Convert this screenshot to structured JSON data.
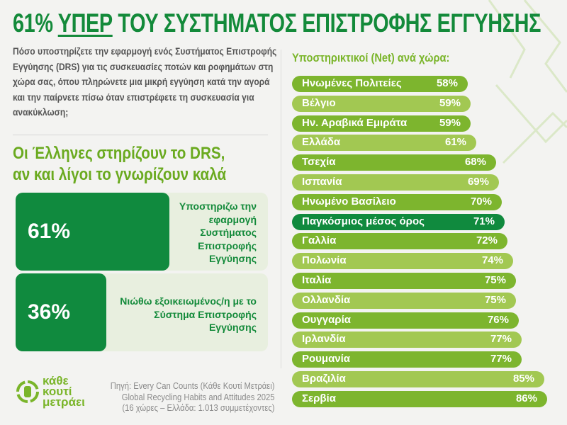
{
  "header": {
    "title_prefix": "61% ",
    "title_emph": "ΥΠΕΡ",
    "title_rest": " ΤΟΥ ΣΥΣΤΗΜΑΤΟΣ ΕΠΙΣΤΡΟΦΗΣ ΕΓΓΥΗΣΗΣ"
  },
  "question": "Πόσο υποστηρίζετε την εφαρμογή ενός Συστήματος Επιστροφής Εγγύησης (DRS) για τις συσκευασίες ποτών και ροφημάτων στη χώρα σας, όπου πληρώνετε μια μικρή εγγύηση κατά την αγορά και την παίρνετε πίσω όταν επιστρέφετε τη συσκευασία για ανακύκλωση;",
  "subhead": {
    "line1": "Οι Έλληνες στηρίζουν το DRS,",
    "line2": "αν και λίγοι το γνωρίζουν καλά"
  },
  "stats": [
    {
      "value": "61%",
      "fraction": 0.61,
      "label": "Υποστηριζω την εφαρμογή Συστήματος Επιστροφής Εγγύησης"
    },
    {
      "value": "36%",
      "fraction": 0.36,
      "label": "Νιώθω εξοικειωμένος/η με το Σύστημα Επιστροφής Εγγύησης"
    }
  ],
  "colors": {
    "dark_green": "#108a3e",
    "bar_a": "#7db52e",
    "bar_b": "#a2c852",
    "title": "#138a3a"
  },
  "chart_data": {
    "type": "bar",
    "orientation": "horizontal",
    "title": "Υποστηρικτικοί (Net) ανά χώρα:",
    "categories": [
      "Ηνωμένες Πολιτείες",
      "Βέλγιο",
      "Ην. Αραβικά Εμιράτα",
      "Ελλάδα",
      "Τσεχία",
      "Ισπανία",
      "Ηνωμένο Βασίλειο",
      "Παγκόσμιος μέσος όρος",
      "Γαλλία",
      "Πολωνία",
      "Ιταλία",
      "Ολλανδία",
      "Ουγγαρία",
      "Ιρλανδία",
      "Ρουμανία",
      "Βραζιλία",
      "Σερβία"
    ],
    "values": [
      58,
      59,
      59,
      61,
      68,
      69,
      70,
      71,
      72,
      74,
      75,
      75,
      76,
      77,
      77,
      85,
      86
    ],
    "highlight": "Παγκόσμιος μέσος όρος",
    "unit": "%"
  },
  "logo": {
    "line1": "κάθε",
    "line2": "κουτί",
    "line3": "μετράει"
  },
  "source": {
    "line1": "Πηγή: Every Can Counts (Κάθε Κουτί Μετράει)",
    "line2": "Global Recycling Habits and Attitudes 2025",
    "line3": "(16 χώρες – Ελλάδα: 1.013 συμμετέχοντες)"
  }
}
